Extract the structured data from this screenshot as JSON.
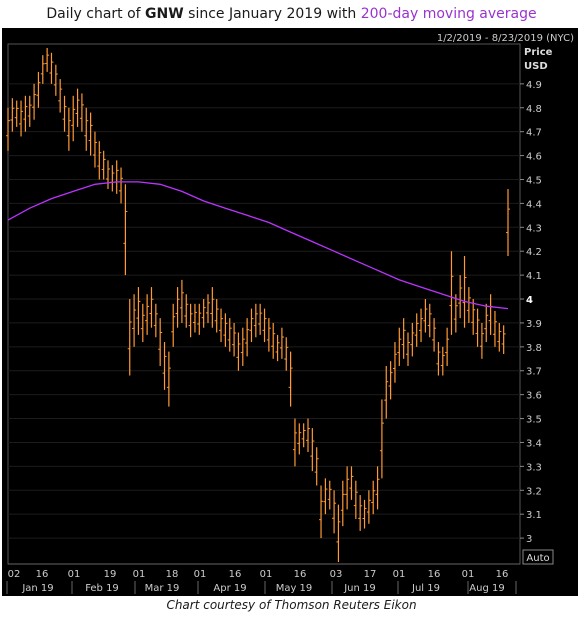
{
  "title": {
    "prefix": "Daily chart of ",
    "ticker": "GNW",
    "middle": " since January 2019 with ",
    "ma_label": "200-day moving average"
  },
  "date_range": "1/2/2019 - 8/23/2019 (NYC)",
  "price_label_1": "Price",
  "price_label_2": "USD",
  "auto_label": "Auto",
  "caption": "Chart courtesy of Thomson Reuters Eikon",
  "colors": {
    "price": "#ff9933",
    "ma": "#bb33ff",
    "background": "#000000",
    "axis_text": "#cccccc",
    "grid": "#1c1c1c"
  },
  "chart_data": {
    "type": "bar",
    "subtype": "ohlc",
    "ylim": [
      2.9,
      5.05
    ],
    "y_ticks": [
      "3",
      "3.1",
      "3.2",
      "3.3",
      "3.4",
      "3.5",
      "3.6",
      "3.7",
      "3.8",
      "3.9",
      "4",
      "4.1",
      "4.2",
      "4.3",
      "4.4",
      "4.5",
      "4.6",
      "4.7",
      "4.8",
      "4.9"
    ],
    "x_day_ticks": [
      "02",
      "16",
      "01",
      "19",
      "01",
      "18",
      "01",
      "16",
      "01",
      "16",
      "03",
      "17",
      "01",
      "16",
      "01",
      "16"
    ],
    "x_month_labels": [
      "Jan 19",
      "Feb 19",
      "Mar 19",
      "Apr 19",
      "May 19",
      "Jun 19",
      "Jul 19",
      "Aug 19"
    ],
    "price_bars": [
      [
        4.62,
        4.8
      ],
      [
        4.7,
        4.84
      ],
      [
        4.72,
        4.83
      ],
      [
        4.68,
        4.83
      ],
      [
        4.7,
        4.85
      ],
      [
        4.72,
        4.85
      ],
      [
        4.75,
        4.9
      ],
      [
        4.8,
        4.95
      ],
      [
        4.9,
        5.02
      ],
      [
        4.95,
        5.05
      ],
      [
        4.9,
        5.03
      ],
      [
        4.85,
        4.98
      ],
      [
        4.78,
        4.92
      ],
      [
        4.7,
        4.85
      ],
      [
        4.62,
        4.8
      ],
      [
        4.66,
        4.85
      ],
      [
        4.72,
        4.88
      ],
      [
        4.7,
        4.86
      ],
      [
        4.62,
        4.8
      ],
      [
        4.6,
        4.78
      ],
      [
        4.55,
        4.7
      ],
      [
        4.5,
        4.66
      ],
      [
        4.5,
        4.62
      ],
      [
        4.46,
        4.58
      ],
      [
        4.45,
        4.56
      ],
      [
        4.44,
        4.58
      ],
      [
        4.4,
        4.55
      ],
      [
        4.1,
        4.48
      ],
      [
        3.68,
        4.0
      ],
      [
        3.8,
        4.02
      ],
      [
        3.85,
        4.05
      ],
      [
        3.82,
        3.98
      ],
      [
        3.85,
        4.02
      ],
      [
        3.88,
        4.05
      ],
      [
        3.84,
        3.98
      ],
      [
        3.72,
        3.92
      ],
      [
        3.62,
        3.82
      ],
      [
        3.55,
        3.78
      ],
      [
        3.8,
        3.98
      ],
      [
        3.88,
        4.05
      ],
      [
        3.9,
        4.08
      ],
      [
        3.88,
        4.02
      ],
      [
        3.84,
        3.98
      ],
      [
        3.86,
        3.98
      ],
      [
        3.85,
        3.98
      ],
      [
        3.88,
        4.0
      ],
      [
        3.9,
        4.02
      ],
      [
        3.88,
        4.05
      ],
      [
        3.86,
        4.0
      ],
      [
        3.82,
        3.96
      ],
      [
        3.8,
        3.94
      ],
      [
        3.78,
        3.92
      ],
      [
        3.76,
        3.9
      ],
      [
        3.7,
        3.86
      ],
      [
        3.72,
        3.88
      ],
      [
        3.76,
        3.92
      ],
      [
        3.82,
        3.96
      ],
      [
        3.84,
        3.98
      ],
      [
        3.85,
        3.98
      ],
      [
        3.82,
        3.96
      ],
      [
        3.78,
        3.92
      ],
      [
        3.75,
        3.9
      ],
      [
        3.74,
        3.85
      ],
      [
        3.75,
        3.88
      ],
      [
        3.7,
        3.84
      ],
      [
        3.55,
        3.78
      ],
      [
        3.3,
        3.5
      ],
      [
        3.35,
        3.48
      ],
      [
        3.38,
        3.48
      ],
      [
        3.36,
        3.5
      ],
      [
        3.28,
        3.46
      ],
      [
        3.22,
        3.38
      ],
      [
        3.0,
        3.22
      ],
      [
        3.1,
        3.25
      ],
      [
        3.12,
        3.24
      ],
      [
        3.02,
        3.2
      ],
      [
        2.9,
        3.14
      ],
      [
        3.05,
        3.24
      ],
      [
        3.12,
        3.3
      ],
      [
        3.16,
        3.3
      ],
      [
        3.08,
        3.24
      ],
      [
        3.03,
        3.18
      ],
      [
        3.04,
        3.16
      ],
      [
        3.06,
        3.2
      ],
      [
        3.1,
        3.24
      ],
      [
        3.12,
        3.3
      ],
      [
        3.25,
        3.58
      ],
      [
        3.5,
        3.72
      ],
      [
        3.58,
        3.74
      ],
      [
        3.65,
        3.82
      ],
      [
        3.72,
        3.88
      ],
      [
        3.75,
        3.92
      ],
      [
        3.72,
        3.86
      ],
      [
        3.76,
        3.9
      ],
      [
        3.8,
        3.94
      ],
      [
        3.82,
        3.96
      ],
      [
        3.86,
        4.0
      ],
      [
        3.84,
        3.98
      ],
      [
        3.78,
        3.92
      ],
      [
        3.68,
        3.82
      ],
      [
        3.68,
        3.8
      ],
      [
        3.72,
        3.88
      ],
      [
        3.85,
        4.2
      ],
      [
        3.86,
        4.02
      ],
      [
        3.92,
        4.1
      ],
      [
        3.88,
        4.18
      ],
      [
        3.9,
        4.05
      ],
      [
        3.85,
        4.0
      ],
      [
        3.8,
        3.96
      ],
      [
        3.75,
        3.9
      ],
      [
        3.82,
        3.98
      ],
      [
        3.85,
        4.02
      ],
      [
        3.8,
        3.95
      ],
      [
        3.78,
        3.9
      ],
      [
        3.77,
        3.89
      ],
      [
        4.18,
        4.46
      ]
    ],
    "moving_average": [
      [
        0,
        4.33
      ],
      [
        5,
        4.38
      ],
      [
        10,
        4.42
      ],
      [
        15,
        4.45
      ],
      [
        20,
        4.48
      ],
      [
        25,
        4.49
      ],
      [
        30,
        4.49
      ],
      [
        35,
        4.48
      ],
      [
        40,
        4.45
      ],
      [
        45,
        4.41
      ],
      [
        50,
        4.38
      ],
      [
        55,
        4.35
      ],
      [
        60,
        4.32
      ],
      [
        65,
        4.28
      ],
      [
        70,
        4.24
      ],
      [
        75,
        4.2
      ],
      [
        80,
        4.16
      ],
      [
        85,
        4.12
      ],
      [
        90,
        4.08
      ],
      [
        95,
        4.05
      ],
      [
        100,
        4.02
      ],
      [
        105,
        3.99
      ],
      [
        110,
        3.97
      ],
      [
        115,
        3.96
      ]
    ]
  }
}
